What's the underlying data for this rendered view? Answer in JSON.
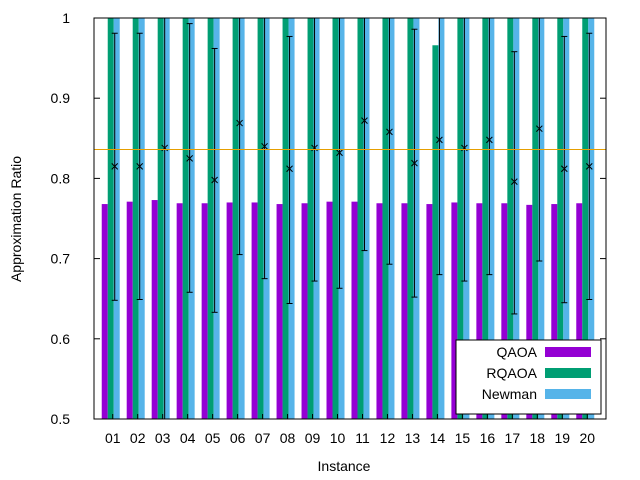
{
  "chart_data": {
    "type": "bar",
    "title": "",
    "xlabel": "Instance",
    "ylabel": "Approximation Ratio",
    "ylim": [
      0.5,
      1.0
    ],
    "yticks": [
      "0.5",
      "0.6",
      "0.7",
      "0.8",
      "0.9",
      "1"
    ],
    "grid": false,
    "legend_position": "bottom-right",
    "categories": [
      "01",
      "02",
      "03",
      "04",
      "05",
      "06",
      "07",
      "08",
      "09",
      "10",
      "11",
      "12",
      "13",
      "14",
      "15",
      "16",
      "17",
      "18",
      "19",
      "20"
    ],
    "series": [
      {
        "name": "QAOA",
        "color": "#9400d3",
        "values": [
          0.768,
          0.771,
          0.773,
          0.769,
          0.769,
          0.77,
          0.77,
          0.768,
          0.769,
          0.771,
          0.771,
          0.769,
          0.769,
          0.768,
          0.77,
          0.769,
          0.769,
          0.767,
          0.768,
          0.769
        ]
      },
      {
        "name": "RQAOA",
        "color": "#009e73",
        "values": [
          1,
          1,
          1,
          1,
          1,
          1,
          1,
          1,
          1,
          1,
          1,
          1,
          1,
          0.966,
          1,
          1,
          1,
          1,
          1,
          1
        ]
      },
      {
        "name": "Newman",
        "color": "#56b4e9",
        "values": [
          1,
          1,
          1,
          1,
          1,
          1,
          1,
          1,
          1,
          1,
          1,
          1,
          1,
          1,
          1,
          1,
          1,
          1,
          1,
          1
        ]
      }
    ],
    "random_points": {
      "mean": [
        0.815,
        0.815,
        0.838,
        0.825,
        0.798,
        0.869,
        0.84,
        0.812,
        0.838,
        0.832,
        0.872,
        0.858,
        0.819,
        0.848,
        0.838,
        0.848,
        0.796,
        0.862,
        0.812,
        0.815
      ],
      "low": [
        0.648,
        0.649,
        0.5,
        0.658,
        0.633,
        0.705,
        0.675,
        0.644,
        0.672,
        0.663,
        0.71,
        0.693,
        0.652,
        0.68,
        0.672,
        0.68,
        0.631,
        0.697,
        0.645,
        0.649
      ],
      "high": [
        0.981,
        0.981,
        1.0,
        0.993,
        0.962,
        1.0,
        1.0,
        0.977,
        1.0,
        1.0,
        1.0,
        1.0,
        0.986,
        1.0,
        1.0,
        1.0,
        0.958,
        1.0,
        0.977,
        0.981
      ]
    },
    "reference_line": {
      "value": 0.836,
      "color": "#e69f00"
    }
  }
}
